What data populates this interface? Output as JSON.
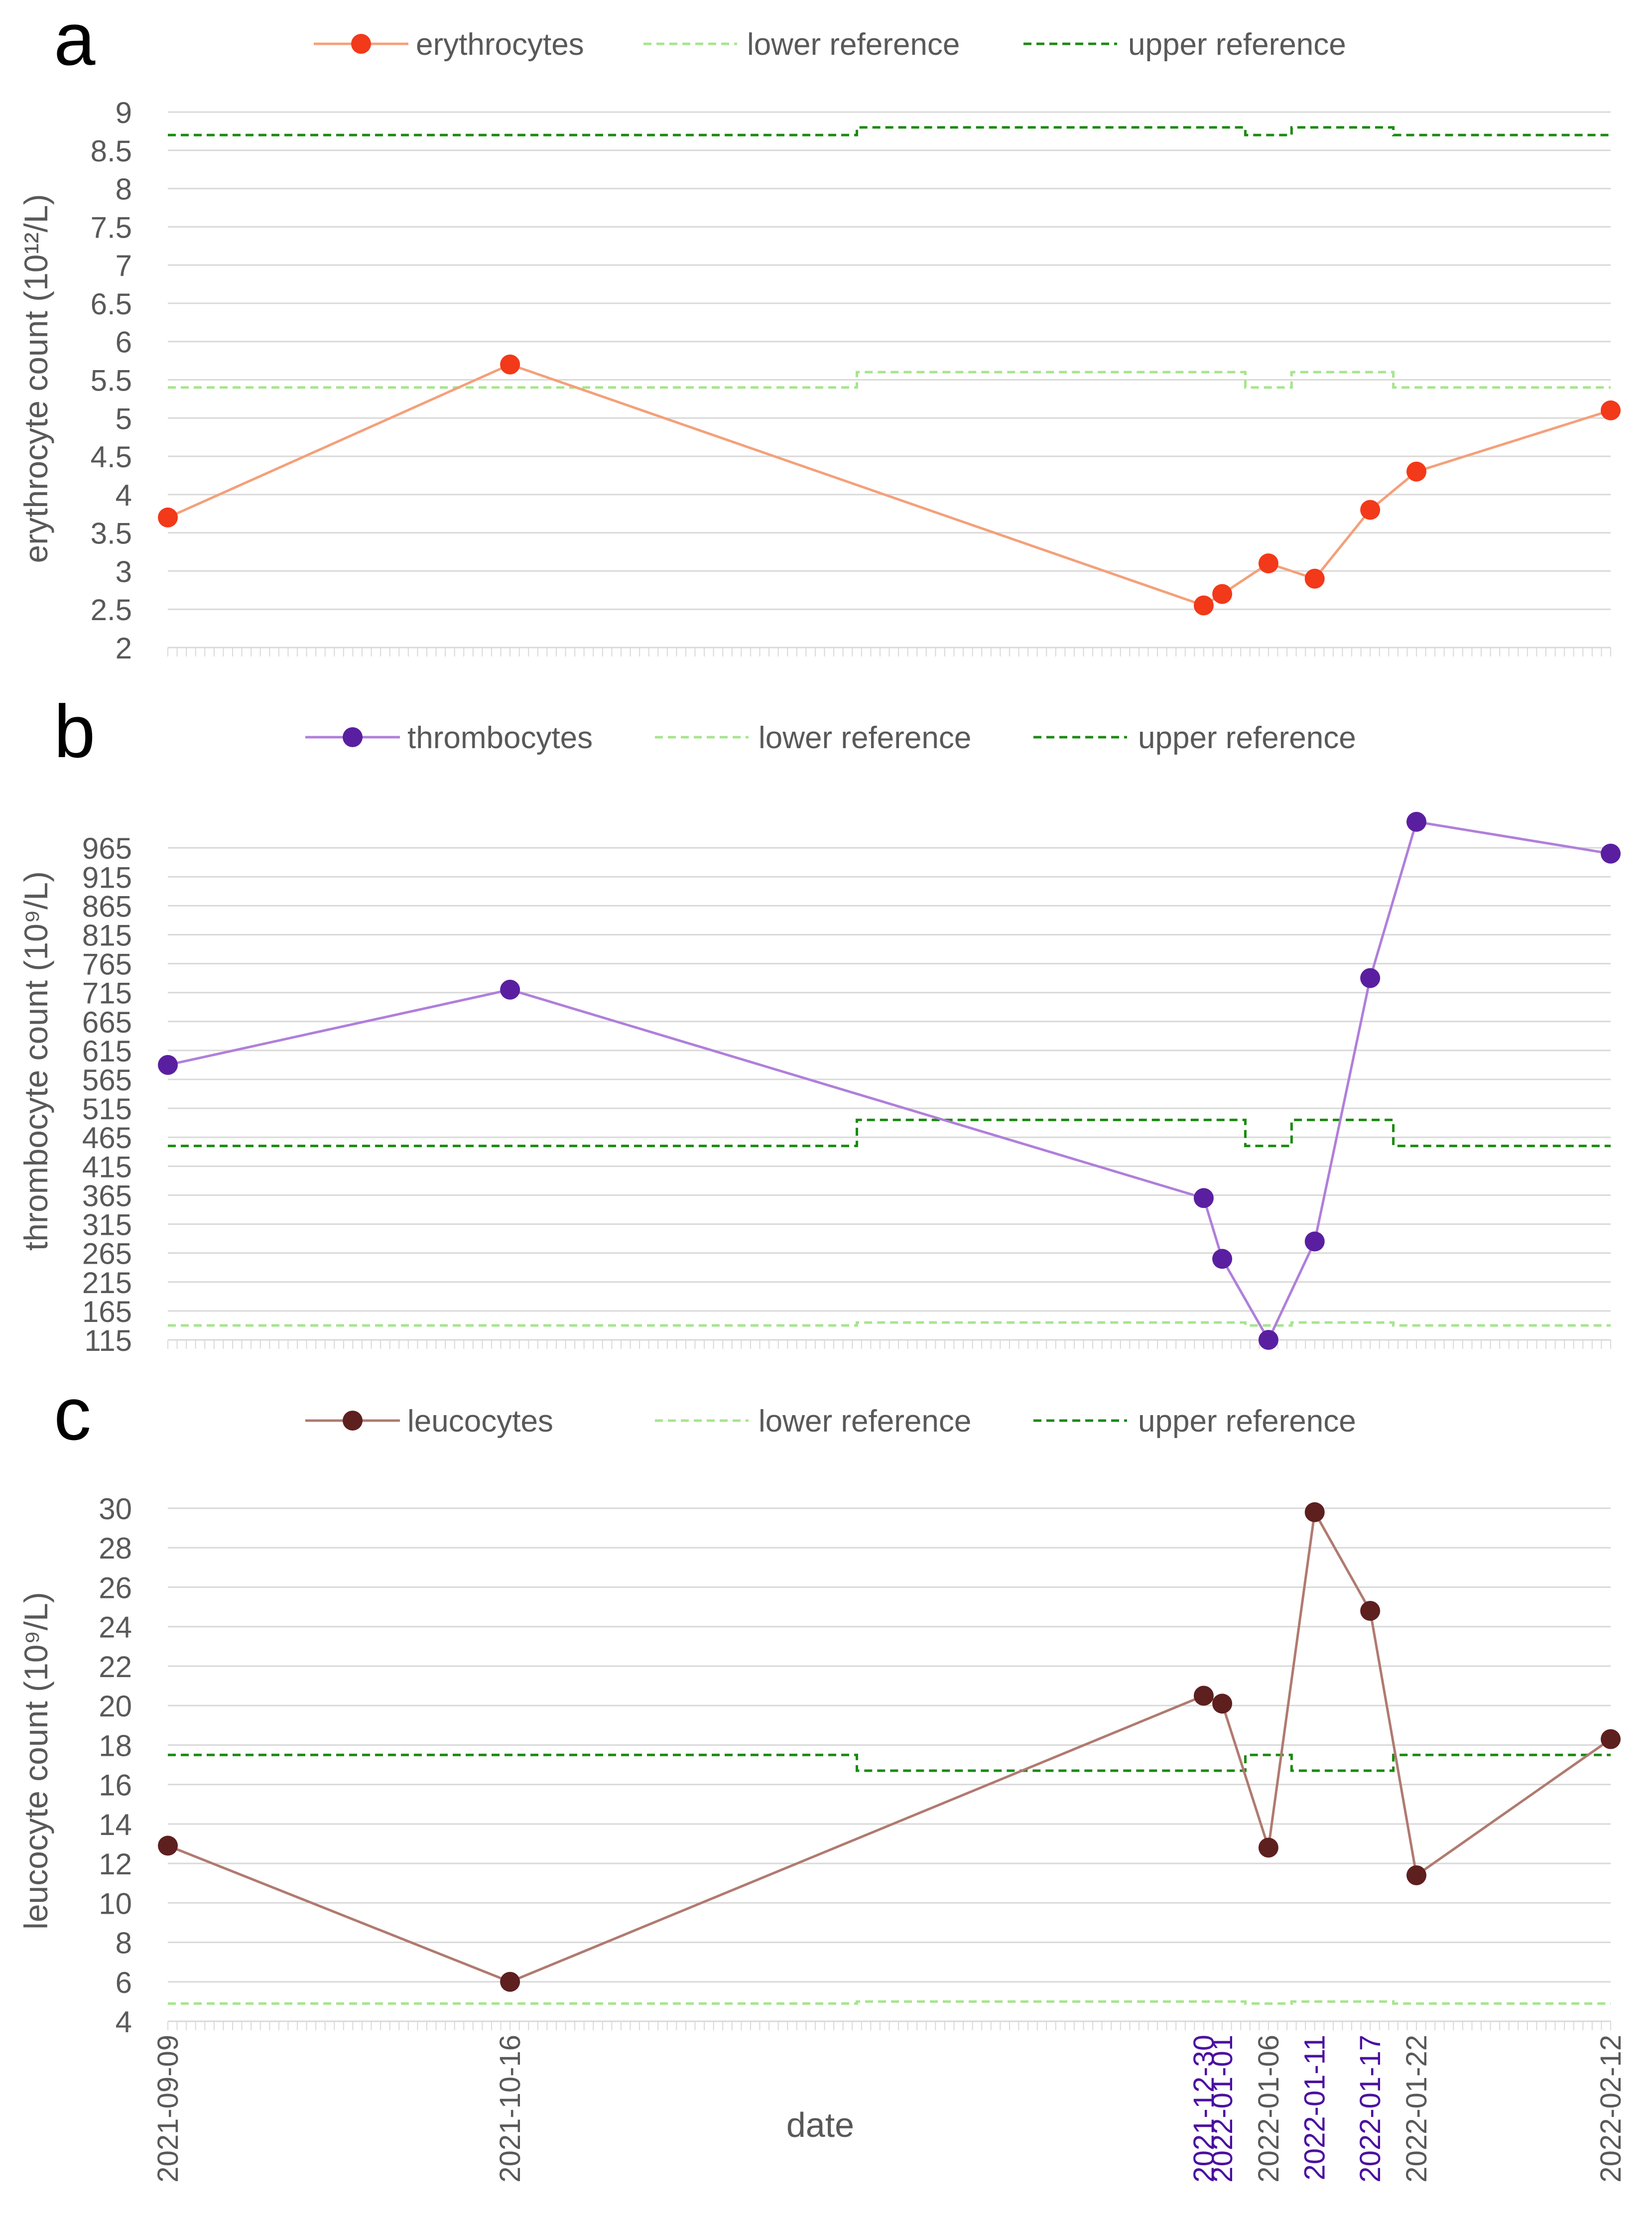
{
  "colors": {
    "erythrocytes_line": "#F4A07A",
    "erythrocytes_marker": "#F2391A",
    "thrombocytes_line": "#B07FDA",
    "thrombocytes_marker": "#5A1FA0",
    "leucocytes_line": "#B07A70",
    "leucocytes_marker": "#5E1F1F",
    "lower_reference": "#A6E58C",
    "upper_reference": "#1A8A10",
    "gridline": "#D9D9D9",
    "axis_text": "#595959",
    "highlight_date": "#4B0FA0"
  },
  "x_axis": {
    "label": "date",
    "dates": [
      "2021-09-09",
      "2021-10-16",
      "2021-12-30",
      "2022-01-01",
      "2022-01-06",
      "2022-01-11",
      "2022-01-17",
      "2022-01-22",
      "2022-02-12"
    ],
    "highlighted_dates": [
      "2021-12-30",
      "2022-01-01",
      "2022-01-11",
      "2022-01-17"
    ]
  },
  "chart_data": [
    {
      "type": "line",
      "panel": "a",
      "ylabel": "erythrocyte count (10¹²/L)",
      "ylim": [
        2,
        9
      ],
      "yticks": [
        2,
        2.5,
        3,
        3.5,
        4,
        4.5,
        5,
        5.5,
        6,
        6.5,
        7,
        7.5,
        8,
        8.5,
        9
      ],
      "series": [
        {
          "name": "erythrocytes",
          "values": [
            3.7,
            5.7,
            2.55,
            2.7,
            3.1,
            2.9,
            3.8,
            4.3,
            5.1
          ]
        },
        {
          "name": "lower reference",
          "values": [
            5.4,
            5.4,
            5.6,
            5.6,
            5.4,
            5.6,
            5.6,
            5.4,
            5.4
          ]
        },
        {
          "name": "upper reference",
          "values": [
            8.7,
            8.7,
            8.8,
            8.8,
            8.7,
            8.8,
            8.8,
            8.7,
            8.7
          ]
        }
      ]
    },
    {
      "type": "line",
      "panel": "b",
      "ylabel": "thrombocyte count (10⁹/L)",
      "ylim": [
        115,
        1040
      ],
      "yticks": [
        115,
        165,
        215,
        265,
        315,
        365,
        415,
        465,
        515,
        565,
        615,
        665,
        715,
        765,
        815,
        865,
        915,
        965
      ],
      "series": [
        {
          "name": "thrombocytes",
          "values": [
            590,
            720,
            360,
            255,
            115,
            285,
            740,
            1010,
            955
          ]
        },
        {
          "name": "lower reference",
          "values": [
            140,
            140,
            145,
            145,
            140,
            145,
            145,
            140,
            140
          ]
        },
        {
          "name": "upper reference",
          "values": [
            450,
            450,
            495,
            495,
            450,
            495,
            495,
            450,
            450
          ]
        }
      ]
    },
    {
      "type": "line",
      "panel": "c",
      "ylabel": "leucocyte count (10⁹/L)",
      "ylim": [
        4,
        30
      ],
      "yticks": [
        4,
        6,
        8,
        10,
        12,
        14,
        16,
        18,
        20,
        22,
        24,
        26,
        28,
        30
      ],
      "series": [
        {
          "name": "leucocytes",
          "values": [
            12.9,
            6.0,
            20.5,
            20.1,
            12.8,
            29.8,
            24.8,
            11.4,
            18.3
          ]
        },
        {
          "name": "lower reference",
          "values": [
            4.9,
            4.9,
            5.0,
            5.0,
            4.9,
            5.0,
            5.0,
            4.9,
            4.9
          ]
        },
        {
          "name": "upper reference",
          "values": [
            17.5,
            17.5,
            16.7,
            16.7,
            17.5,
            16.7,
            16.7,
            17.5,
            17.5
          ]
        }
      ]
    }
  ]
}
